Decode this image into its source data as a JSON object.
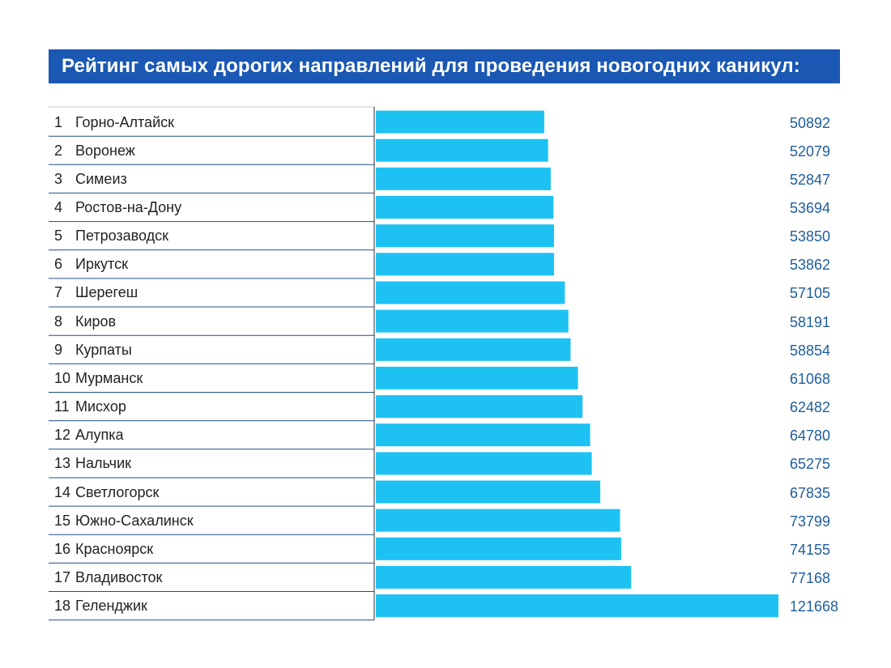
{
  "chart_data": {
    "type": "bar",
    "orientation": "horizontal",
    "title": "Рейтинг самых дорогих направлений для проведения новогодних каникул:",
    "ranks": [
      "1",
      "2",
      "3",
      "4",
      "5",
      "6",
      "7",
      "8",
      "9",
      "10",
      "11",
      "12",
      "13",
      "14",
      "15",
      "16",
      "17",
      "18"
    ],
    "categories": [
      "Горно-Алтайск",
      "Воронеж",
      "Симеиз",
      "Ростов-на-Дону",
      "Петрозаводск",
      "Иркутск",
      "Шерегеш",
      "Киров",
      "Курпаты",
      "Мурманск",
      "Мисхор",
      "Алупка",
      "Нальчик",
      "Светлогорск",
      "Южно-Сахалинск",
      "Красноярск",
      "Владивосток",
      "Геленджик"
    ],
    "values": [
      50892,
      52079,
      52847,
      53694,
      53850,
      53862,
      57105,
      58191,
      58854,
      61068,
      62482,
      64780,
      65275,
      67835,
      73799,
      74155,
      77168,
      121668
    ],
    "value_labels": [
      "50892",
      "52079",
      "52847",
      "53694",
      "53850",
      "53862",
      "57105",
      "58191",
      "58854",
      "61068",
      "62482",
      "64780",
      "65275",
      "67835",
      "73799",
      "74155",
      "77168",
      "121668"
    ],
    "xlim": [
      0,
      121668
    ],
    "xlabel": "",
    "ylabel": "",
    "grid": false,
    "legend": "none"
  },
  "colors": {
    "title_banner": "#1a58b3",
    "bar": "#1ec2f2",
    "value_text": "#1f5d9c",
    "label_text": "#222222",
    "row_line": "#1f4f86"
  }
}
